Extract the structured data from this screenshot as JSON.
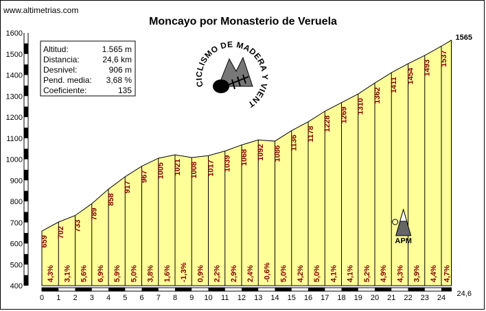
{
  "site": "www.altimetrias.com",
  "chart_data": {
    "type": "area",
    "title": "Moncayo por Monasterio de Veruela",
    "y_ticks": [
      400,
      500,
      600,
      700,
      800,
      900,
      1000,
      1100,
      1200,
      1300,
      1400,
      1500,
      1600
    ],
    "ylim": [
      400,
      1600
    ],
    "x_ticks": [
      0,
      1,
      2,
      3,
      4,
      5,
      6,
      7,
      8,
      9,
      10,
      11,
      12,
      13,
      14,
      15,
      16,
      17,
      18,
      19,
      20,
      21,
      22,
      23,
      24
    ],
    "xlim": [
      0,
      24.6
    ],
    "end_distance_label": "24,6",
    "summit_label": "1565",
    "x": [
      0,
      1,
      2,
      3,
      4,
      5,
      6,
      7,
      8,
      9,
      10,
      11,
      12,
      13,
      14,
      15,
      16,
      17,
      18,
      19,
      20,
      21,
      22,
      23,
      24,
      24.6
    ],
    "altitudes": [
      659,
      702,
      733,
      789,
      858,
      917,
      967,
      1005,
      1021,
      1008,
      1017,
      1039,
      1068,
      1092,
      1086,
      1136,
      1178,
      1228,
      1269,
      1310,
      1362,
      1411,
      1454,
      1493,
      1537,
      1565
    ],
    "altitude_labels": [
      "659",
      "702",
      "733",
      "789",
      "858",
      "917",
      "967",
      "1005",
      "1021",
      "1008",
      "1017",
      "1039",
      "1068",
      "1092",
      "1086",
      "1136",
      "1178",
      "1228",
      "1269",
      "1310",
      "1362",
      "1411",
      "1454",
      "1493",
      "1537"
    ],
    "gradients": [
      "4,3%",
      "3,1%",
      "5,6%",
      "6,9%",
      "5,9%",
      "5,0%",
      "3,8%",
      "1,6%",
      "-1,3%",
      "0,9%",
      "2,2%",
      "2,9%",
      "2,4%",
      "-0,6%",
      "5,0%",
      "4,2%",
      "5,0%",
      "4,1%",
      "4,1%",
      "5,2%",
      "4,9%",
      "4,3%",
      "3,9%",
      "4,4%",
      "4,7%"
    ],
    "fill_color": "#ffff99",
    "line_color": "#000000",
    "label_color": "#800000",
    "marker": {
      "label": "APM",
      "km": 21.8,
      "icon": "mountain-climber-icon"
    }
  },
  "stats": [
    {
      "label": "Altitud:",
      "value": "1.565 m"
    },
    {
      "label": "Distancia:",
      "value": "24,6 km"
    },
    {
      "label": "Desnivel:",
      "value": "906 m"
    },
    {
      "label": "Pend. media:",
      "value": "3,68 %"
    },
    {
      "label": "Coeficiente:",
      "value": "135"
    }
  ],
  "logo": {
    "text": "CICLISMO DE MADERA Y VIENTO",
    "icon": "fish-skeleton-mountain-logo"
  }
}
